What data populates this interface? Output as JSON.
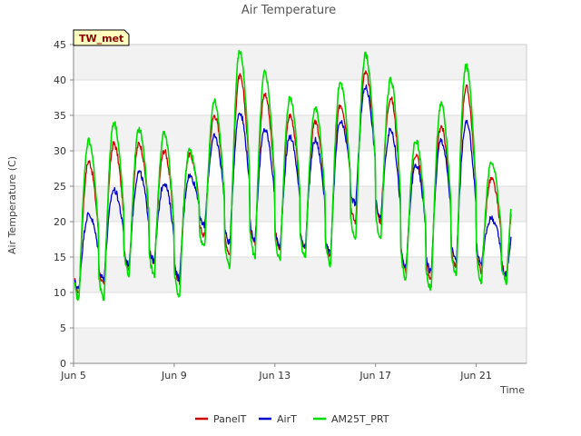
{
  "chart_data": {
    "type": "line",
    "title": "Air Temperature",
    "xlabel": "Time",
    "ylabel": "Air Temperature (C)",
    "station_label": "TW_met",
    "x_unit": "days since Jun 5",
    "xlim": [
      0,
      18
    ],
    "ylim": [
      0,
      45
    ],
    "y_ticks": [
      0,
      5,
      10,
      15,
      20,
      25,
      30,
      35,
      40,
      45
    ],
    "x_ticks": [
      {
        "value": 0,
        "label": "Jun 5"
      },
      {
        "value": 4,
        "label": "Jun 9"
      },
      {
        "value": 8,
        "label": "Jun 13"
      },
      {
        "value": 12,
        "label": "Jun 17"
      },
      {
        "value": 16,
        "label": "Jun 21"
      }
    ],
    "grid": "horizontal alternating bands",
    "legend_position": "bottom",
    "series": [
      {
        "name": "PanelT",
        "color": "#cc0000",
        "daily_min": [
          10.0,
          11.0,
          13.5,
          14.0,
          11.5,
          18.0,
          15.5,
          17.0,
          16.0,
          16.0,
          15.0,
          20.0,
          20.0,
          13.0,
          12.0,
          13.5,
          13.0,
          12.5
        ],
        "daily_max": [
          28.5,
          31.0,
          31.0,
          30.0,
          29.5,
          35.0,
          40.5,
          38.0,
          35.0,
          34.0,
          36.5,
          41.0,
          37.5,
          29.5,
          33.5,
          39.0,
          26.0
        ]
      },
      {
        "name": "AirT",
        "color": "#0000cc",
        "daily_min": [
          10.5,
          12.0,
          14.0,
          14.5,
          12.0,
          19.5,
          17.0,
          17.5,
          16.5,
          16.5,
          15.5,
          22.5,
          20.5,
          13.5,
          13.0,
          14.5,
          14.0,
          12.5
        ],
        "daily_max": [
          21.0,
          24.5,
          27.0,
          25.5,
          26.5,
          32.0,
          35.5,
          33.0,
          32.0,
          31.5,
          34.0,
          39.0,
          33.0,
          28.0,
          31.5,
          34.0,
          20.5
        ]
      },
      {
        "name": "AM25T_PRT",
        "color": "#00dd00",
        "daily_min": [
          9.0,
          9.0,
          12.5,
          12.5,
          9.5,
          16.5,
          13.5,
          15.0,
          14.5,
          15.0,
          14.0,
          17.5,
          17.5,
          12.0,
          10.5,
          12.5,
          11.5,
          11.5
        ],
        "daily_max": [
          31.5,
          34.0,
          33.0,
          32.5,
          30.0,
          37.0,
          44.0,
          41.0,
          37.5,
          36.0,
          39.5,
          43.5,
          40.0,
          31.5,
          36.5,
          42.0,
          28.5
        ]
      }
    ]
  }
}
